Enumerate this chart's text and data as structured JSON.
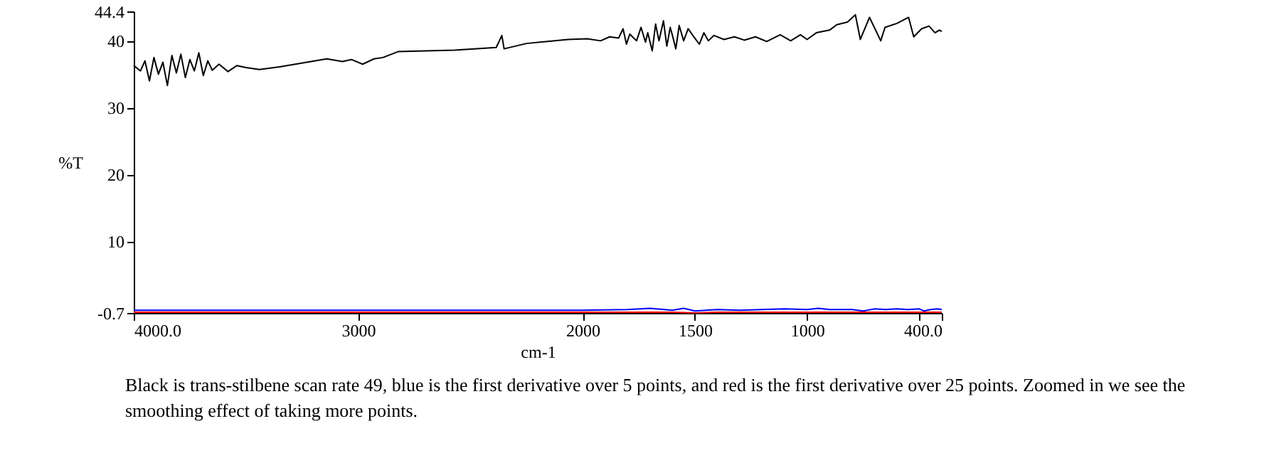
{
  "chart_data": {
    "type": "line",
    "xlabel": "cm-1",
    "ylabel": "%T",
    "xlim": [
      4000,
      400
    ],
    "ylim": [
      -0.7,
      44.4
    ],
    "xticks": [
      {
        "value": 4000,
        "label": "4000.0"
      },
      3000,
      2000,
      1500,
      1000,
      {
        "value": 500,
        "label": null
      },
      {
        "value": 400,
        "label": "400.0"
      }
    ],
    "yticks": [
      -0.7,
      10,
      20,
      30,
      40,
      44.4
    ],
    "grid": false,
    "marker": "none",
    "line_style": "solid",
    "annotations": [
      "Black is trans-stilbene scan rate 49, blue is the first derivative over 5 points, and red is the first derivative over 25 points. Zoomed in we see the smoothing effect of taking more points."
    ],
    "series": [
      {
        "color": "#000000",
        "x": [
          4000,
          3970,
          3950,
          3930,
          3910,
          3890,
          3870,
          3850,
          3830,
          3810,
          3790,
          3770,
          3750,
          3730,
          3710,
          3690,
          3670,
          3650,
          3620,
          3580,
          3540,
          3500,
          3440,
          3350,
          3210,
          3140,
          3070,
          3030,
          2980,
          2930,
          2890,
          2820,
          2570,
          2385,
          2360,
          2350,
          2250,
          2065,
          1980,
          1920,
          1880,
          1840,
          1820,
          1805,
          1790,
          1760,
          1740,
          1720,
          1710,
          1690,
          1675,
          1660,
          1640,
          1625,
          1610,
          1600,
          1585,
          1570,
          1550,
          1530,
          1505,
          1480,
          1460,
          1440,
          1415,
          1370,
          1324,
          1280,
          1230,
          1180,
          1120,
          1073,
          1030,
          1000,
          959,
          900,
          868,
          820,
          785,
          763,
          722,
          672,
          653,
          600,
          548,
          525,
          490,
          457,
          430,
          411,
          400
        ],
        "values": [
          36.3,
          35.5,
          37.0,
          34.0,
          37.5,
          35.0,
          36.8,
          33.3,
          37.8,
          35.2,
          38.0,
          34.5,
          37.2,
          35.5,
          38.2,
          34.8,
          37.0,
          35.6,
          36.5,
          35.4,
          36.3,
          36.0,
          35.7,
          36.1,
          36.9,
          37.3,
          36.9,
          37.2,
          36.5,
          37.3,
          37.5,
          38.4,
          38.6,
          39.0,
          40.8,
          38.8,
          39.6,
          40.2,
          40.3,
          40.0,
          40.6,
          40.4,
          41.8,
          39.5,
          41.0,
          40.0,
          42.0,
          39.8,
          41.2,
          38.5,
          42.5,
          40.0,
          43.0,
          39.2,
          42.0,
          40.8,
          38.8,
          42.3,
          40.0,
          41.8,
          40.6,
          39.5,
          41.2,
          40.0,
          40.8,
          40.2,
          40.6,
          40.1,
          40.6,
          39.9,
          40.9,
          40.0,
          40.9,
          40.2,
          41.2,
          41.6,
          42.4,
          42.8,
          43.9,
          40.2,
          43.5,
          40.0,
          42.0,
          42.6,
          43.5,
          40.6,
          41.8,
          42.2,
          41.2,
          41.6,
          41.4
        ]
      },
      {
        "color": "#ff0000",
        "x": [
          4000,
          3500,
          3000,
          2500,
          2000,
          1800,
          1600,
          1500,
          1400,
          1200,
          1000,
          900,
          800,
          700,
          600,
          500,
          450,
          400
        ],
        "values": [
          -0.6,
          -0.6,
          -0.6,
          -0.6,
          -0.6,
          -0.6,
          -0.6,
          -0.7,
          -0.6,
          -0.6,
          -0.6,
          -0.6,
          -0.6,
          -0.6,
          -0.6,
          -0.6,
          -0.6,
          -0.6
        ]
      },
      {
        "color": "#0000ff",
        "x": [
          4000,
          3500,
          3000,
          2500,
          2000,
          1800,
          1700,
          1600,
          1550,
          1500,
          1400,
          1300,
          1200,
          1100,
          1000,
          950,
          900,
          800,
          750,
          700,
          650,
          600,
          550,
          500,
          480,
          450,
          420,
          400
        ],
        "values": [
          -0.3,
          -0.3,
          -0.3,
          -0.3,
          -0.3,
          -0.2,
          0.0,
          -0.3,
          0.0,
          -0.4,
          -0.2,
          -0.3,
          -0.2,
          -0.1,
          -0.2,
          0.0,
          -0.2,
          -0.2,
          -0.4,
          -0.1,
          -0.2,
          -0.1,
          -0.2,
          -0.1,
          -0.4,
          -0.2,
          -0.1,
          -0.2
        ]
      }
    ]
  }
}
